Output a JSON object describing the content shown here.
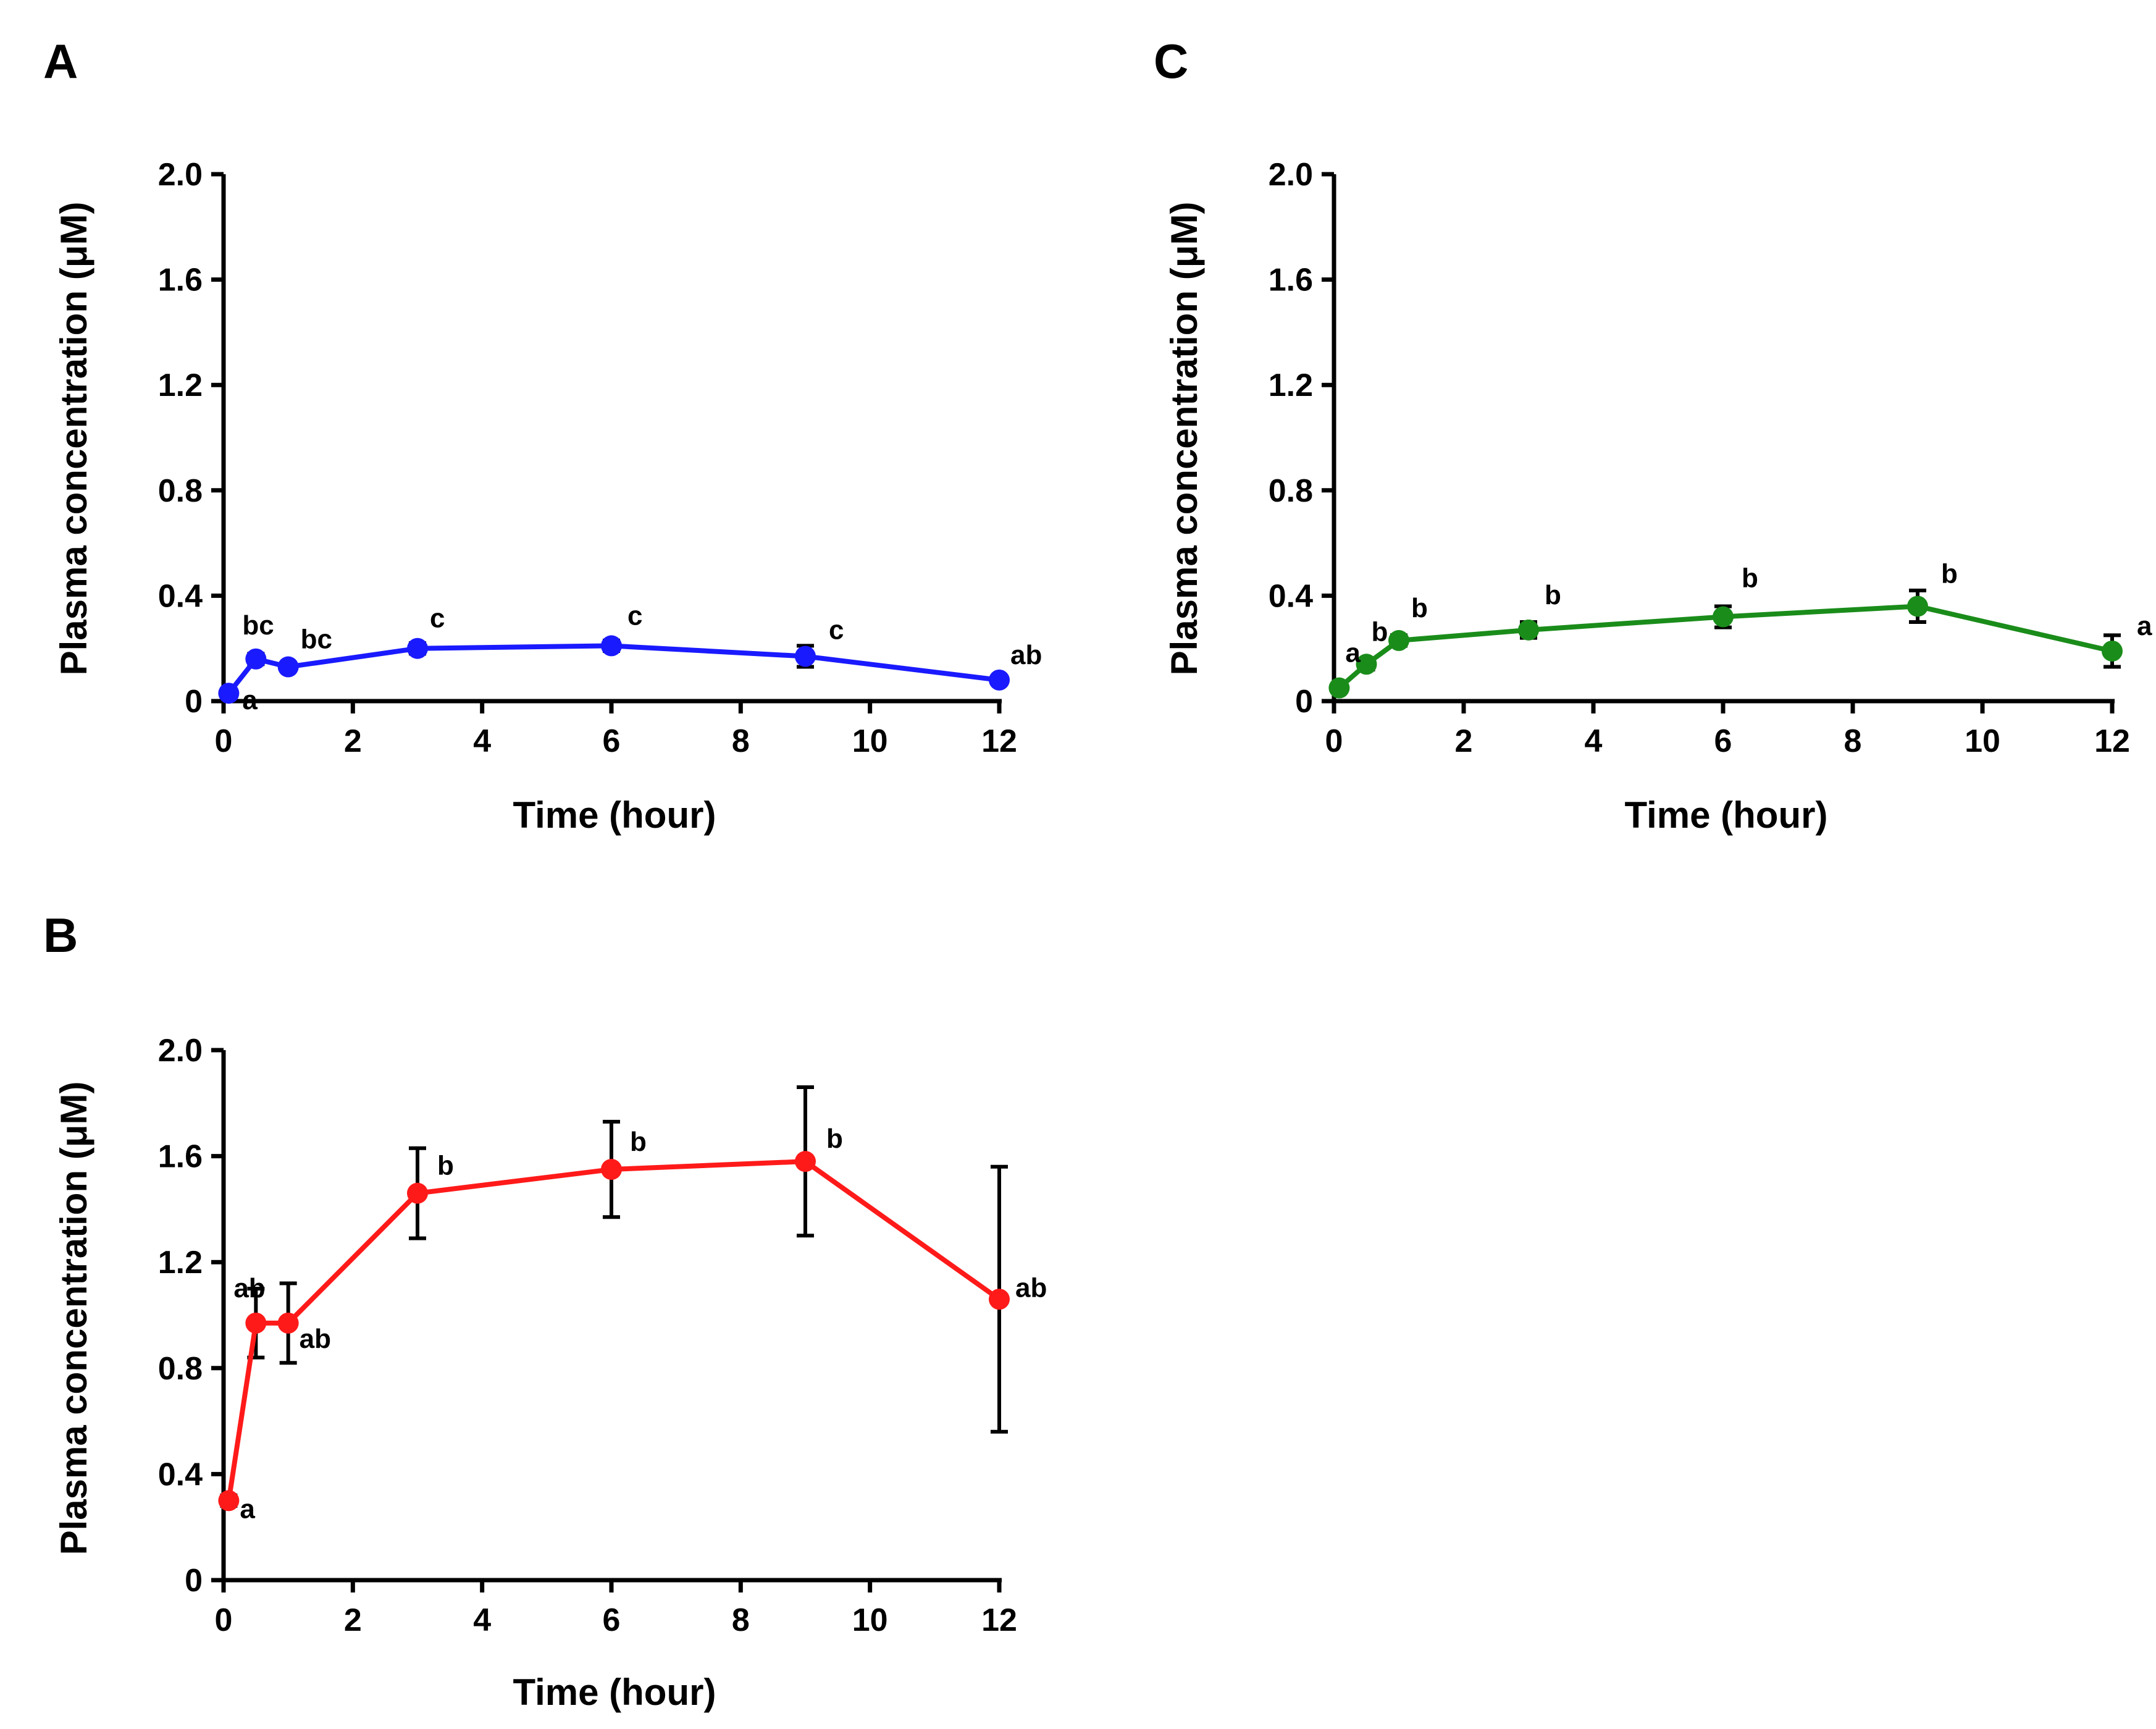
{
  "chart_data": [
    {
      "panel": "A",
      "type": "line",
      "xlabel": "Time (hour)",
      "ylabel": "Plasma concentration (μM)",
      "xlim": [
        0,
        12
      ],
      "ylim": [
        0,
        2.0
      ],
      "xticks": [
        0,
        2,
        4,
        6,
        8,
        10,
        12
      ],
      "yticks": [
        0,
        0.4,
        0.8,
        1.2,
        1.6,
        2.0
      ],
      "ytick_labels": [
        "0",
        "0.4",
        "0.8",
        "1.2",
        "1.6",
        "2.0"
      ],
      "color": "#1a1aff",
      "series": [
        {
          "name": "A",
          "x": [
            0.08,
            0.5,
            1,
            3,
            6,
            9,
            12
          ],
          "values": [
            0.03,
            0.16,
            0.13,
            0.2,
            0.21,
            0.17,
            0.08
          ],
          "errors": [
            0.01,
            0.02,
            0.015,
            0.02,
            0.02,
            0.04,
            0.01
          ],
          "labels": [
            "a",
            "bc",
            "bc",
            "c",
            "c",
            "c",
            "ab"
          ]
        }
      ]
    },
    {
      "panel": "B",
      "type": "line",
      "xlabel": "Time (hour)",
      "ylabel": "Plasma concentration (μM)",
      "xlim": [
        0,
        12
      ],
      "ylim": [
        0,
        2.0
      ],
      "xticks": [
        0,
        2,
        4,
        6,
        8,
        10,
        12
      ],
      "yticks": [
        0,
        0.4,
        0.8,
        1.2,
        1.6,
        2.0
      ],
      "ytick_labels": [
        "0",
        "0.4",
        "0.8",
        "1.2",
        "1.6",
        "2.0"
      ],
      "color": "#ff1a1a",
      "series": [
        {
          "name": "B",
          "x": [
            0.08,
            0.5,
            1,
            3,
            6,
            9,
            12
          ],
          "values": [
            0.3,
            0.97,
            0.97,
            1.46,
            1.55,
            1.58,
            1.06
          ],
          "errors": [
            0.02,
            0.13,
            0.15,
            0.17,
            0.18,
            0.28,
            0.5
          ],
          "labels": [
            "a",
            "ab",
            "ab",
            "b",
            "b",
            "b",
            "ab"
          ]
        }
      ]
    },
    {
      "panel": "C",
      "type": "line",
      "xlabel": "Time (hour)",
      "ylabel": "Plasma concentration (μM)",
      "xlim": [
        0,
        12
      ],
      "ylim": [
        0,
        2.0
      ],
      "xticks": [
        0,
        2,
        4,
        6,
        8,
        10,
        12
      ],
      "yticks": [
        0,
        0.4,
        0.8,
        1.2,
        1.6,
        2.0
      ],
      "ytick_labels": [
        "0",
        "0.4",
        "0.8",
        "1.2",
        "1.6",
        "2.0"
      ],
      "color": "#1a8c1a",
      "series": [
        {
          "name": "C",
          "x": [
            0.08,
            0.5,
            1,
            3,
            6,
            9,
            12
          ],
          "values": [
            0.05,
            0.14,
            0.23,
            0.27,
            0.32,
            0.36,
            0.19
          ],
          "errors": [
            0.01,
            0.02,
            0.02,
            0.03,
            0.04,
            0.06,
            0.06
          ],
          "labels": [
            "a",
            "b",
            "b",
            "b",
            "b",
            "b",
            "a"
          ]
        }
      ]
    }
  ]
}
